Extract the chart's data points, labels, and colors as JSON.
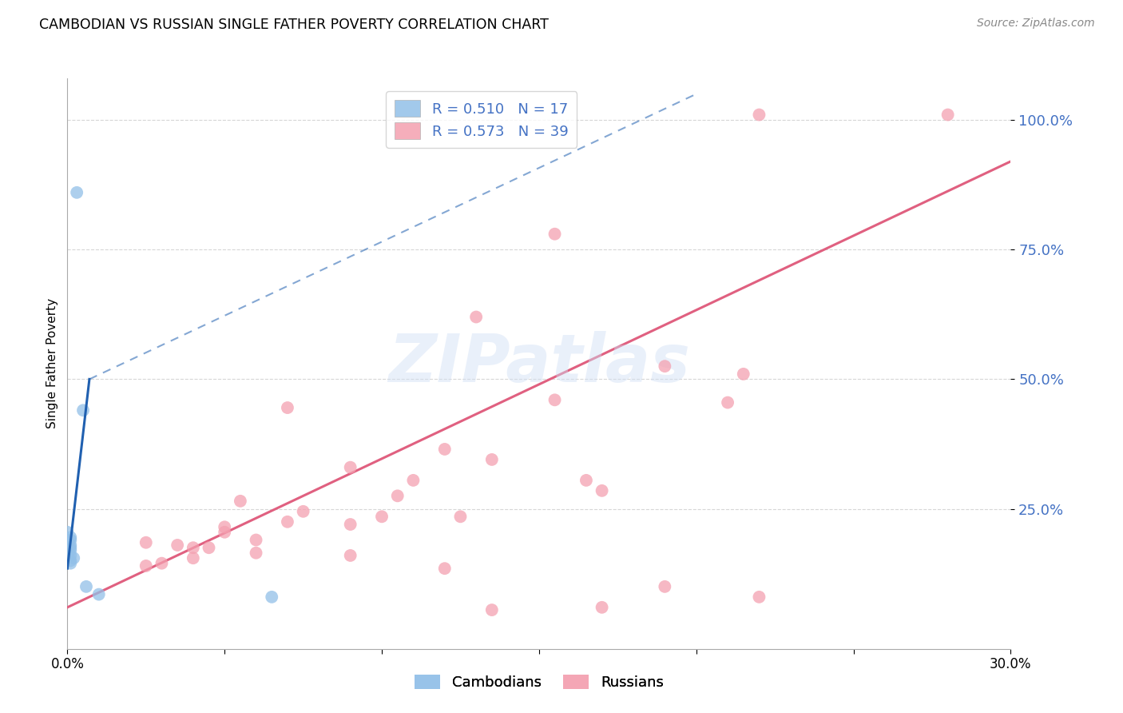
{
  "title": "CAMBODIAN VS RUSSIAN SINGLE FATHER POVERTY CORRELATION CHART",
  "source": "Source: ZipAtlas.com",
  "ylabel": "Single Father Poverty",
  "ytick_color": "#4472c4",
  "watermark": "ZIPatlas",
  "cambodian_color": "#92c0e8",
  "russian_color": "#f4a0b0",
  "trendline_cambodian_color": "#2060b0",
  "trendline_russian_color": "#e06080",
  "xlim": [
    0.0,
    0.3
  ],
  "ylim": [
    -0.02,
    1.08
  ],
  "cambodian_points": [
    [
      0.003,
      0.86
    ],
    [
      0.005,
      0.44
    ],
    [
      0.0,
      0.205
    ],
    [
      0.001,
      0.195
    ],
    [
      0.001,
      0.19
    ],
    [
      0.0,
      0.185
    ],
    [
      0.001,
      0.18
    ],
    [
      0.001,
      0.175
    ],
    [
      0.001,
      0.17
    ],
    [
      0.0,
      0.165
    ],
    [
      0.001,
      0.16
    ],
    [
      0.002,
      0.155
    ],
    [
      0.001,
      0.15
    ],
    [
      0.001,
      0.145
    ],
    [
      0.006,
      0.1
    ],
    [
      0.01,
      0.085
    ],
    [
      0.065,
      0.08
    ]
  ],
  "russian_points": [
    [
      0.22,
      1.01
    ],
    [
      0.28,
      1.01
    ],
    [
      0.155,
      0.78
    ],
    [
      0.13,
      0.62
    ],
    [
      0.19,
      0.525
    ],
    [
      0.215,
      0.51
    ],
    [
      0.155,
      0.46
    ],
    [
      0.21,
      0.455
    ],
    [
      0.07,
      0.445
    ],
    [
      0.12,
      0.365
    ],
    [
      0.135,
      0.345
    ],
    [
      0.09,
      0.33
    ],
    [
      0.11,
      0.305
    ],
    [
      0.165,
      0.305
    ],
    [
      0.17,
      0.285
    ],
    [
      0.105,
      0.275
    ],
    [
      0.055,
      0.265
    ],
    [
      0.075,
      0.245
    ],
    [
      0.1,
      0.235
    ],
    [
      0.125,
      0.235
    ],
    [
      0.07,
      0.225
    ],
    [
      0.09,
      0.22
    ],
    [
      0.05,
      0.215
    ],
    [
      0.05,
      0.205
    ],
    [
      0.06,
      0.19
    ],
    [
      0.025,
      0.185
    ],
    [
      0.035,
      0.18
    ],
    [
      0.04,
      0.175
    ],
    [
      0.045,
      0.175
    ],
    [
      0.06,
      0.165
    ],
    [
      0.09,
      0.16
    ],
    [
      0.04,
      0.155
    ],
    [
      0.03,
      0.145
    ],
    [
      0.025,
      0.14
    ],
    [
      0.12,
      0.135
    ],
    [
      0.19,
      0.1
    ],
    [
      0.22,
      0.08
    ],
    [
      0.17,
      0.06
    ],
    [
      0.135,
      0.055
    ]
  ],
  "trendline_cam_x0": 0.0,
  "trendline_cam_y0": 0.135,
  "trendline_cam_x1": 0.007,
  "trendline_cam_y1": 0.5,
  "trendline_cam_dash_x0": 0.007,
  "trendline_cam_dash_y0": 0.5,
  "trendline_cam_dash_x1": 0.2,
  "trendline_cam_dash_y1": 1.05,
  "trendline_rus_x0": 0.0,
  "trendline_rus_y0": 0.06,
  "trendline_rus_x1": 0.3,
  "trendline_rus_y1": 0.92,
  "background_color": "#ffffff",
  "grid_color": "#cccccc",
  "yticks": [
    0.25,
    0.5,
    0.75,
    1.0
  ],
  "ytick_labels": [
    "25.0%",
    "50.0%",
    "75.0%",
    "100.0%"
  ],
  "xticks": [
    0.0,
    0.05,
    0.1,
    0.15,
    0.2,
    0.25,
    0.3
  ],
  "xtick_labels": [
    "0.0%",
    "",
    "",
    "",
    "",
    "",
    "30.0%"
  ]
}
